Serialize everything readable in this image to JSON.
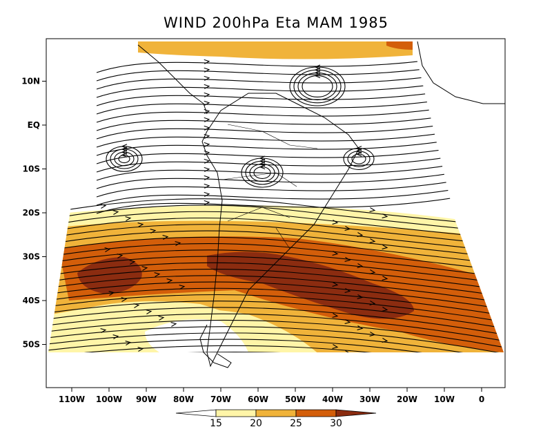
{
  "chart_data": {
    "type": "heatmap",
    "title": "WIND 200hPa Eta MAM 1985",
    "variable": "wind speed with streamlines",
    "projection": "conic",
    "xlim": [
      -117,
      7
    ],
    "ylim": [
      -60,
      20
    ],
    "x_ticks": [
      {
        "value": -110,
        "label": "110W"
      },
      {
        "value": -100,
        "label": "100W"
      },
      {
        "value": -90,
        "label": "90W"
      },
      {
        "value": -80,
        "label": "80W"
      },
      {
        "value": -70,
        "label": "70W"
      },
      {
        "value": -60,
        "label": "60W"
      },
      {
        "value": -50,
        "label": "50W"
      },
      {
        "value": -40,
        "label": "40W"
      },
      {
        "value": -30,
        "label": "30W"
      },
      {
        "value": -20,
        "label": "20W"
      },
      {
        "value": -10,
        "label": "10W"
      },
      {
        "value": 0,
        "label": "0"
      }
    ],
    "y_ticks": [
      {
        "value": 10,
        "label": "10N"
      },
      {
        "value": 0,
        "label": "EQ"
      },
      {
        "value": -10,
        "label": "10S"
      },
      {
        "value": -20,
        "label": "20S"
      },
      {
        "value": -30,
        "label": "30S"
      },
      {
        "value": -40,
        "label": "40S"
      },
      {
        "value": -50,
        "label": "50S"
      }
    ],
    "colorbar": {
      "levels": [
        15,
        20,
        25,
        30
      ],
      "labels": [
        "15",
        "20",
        "25",
        "30"
      ],
      "colors": [
        "#ffffff",
        "#fff5a8",
        "#f0b33a",
        "#d35e0a",
        "#8b2c10"
      ]
    },
    "regions": [
      {
        "level_min": 15,
        "description": "weak band",
        "approx_lat_range": [
          -22,
          -17
        ]
      },
      {
        "level_min": 25,
        "description": "subtropical jet core",
        "center": [
          -35,
          -38
        ],
        "max_level": 30
      },
      {
        "level_min": 30,
        "description": "jet max east Pacific",
        "center": [
          -102,
          -34
        ]
      },
      {
        "level_min": 30,
        "description": "jet max South Atlantic",
        "center": [
          -40,
          -38
        ]
      },
      {
        "level_min": 25,
        "description": "northern edge jet",
        "center": [
          -45,
          17
        ]
      }
    ],
    "grid": false,
    "legend": "bottom"
  }
}
